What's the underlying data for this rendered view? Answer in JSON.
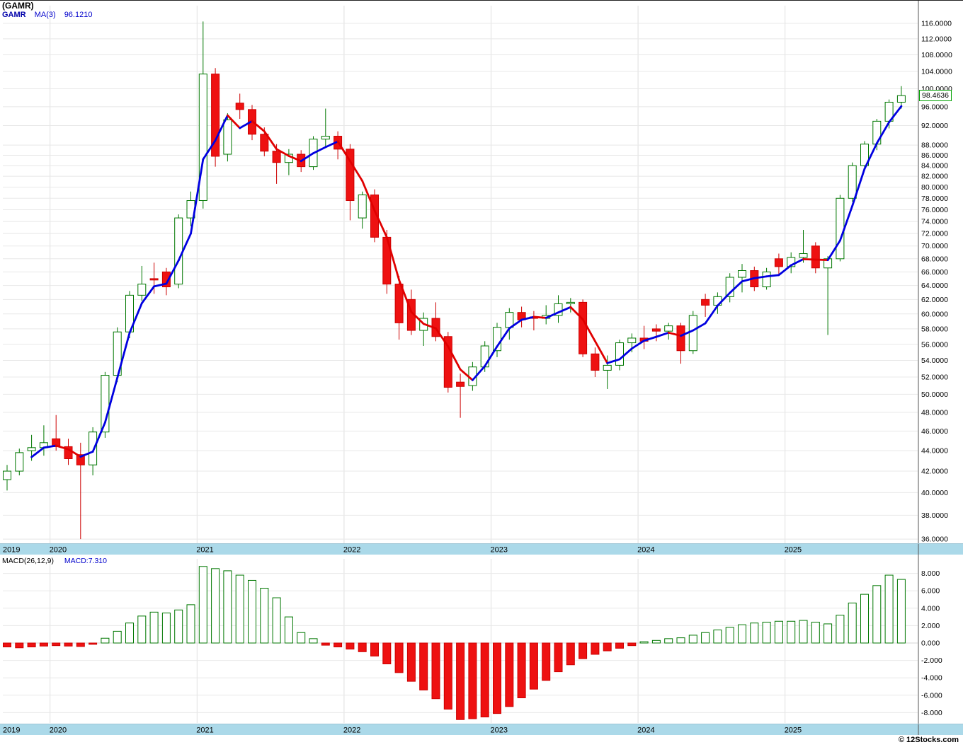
{
  "header": {
    "symbol_title": "(GAMR)",
    "legend_symbol": "GAMR",
    "legend_ma": "MA(3)",
    "legend_ma_value": "96.1210"
  },
  "macd_header": {
    "label": "MACD(26,12,9)",
    "value_label": "MACD:7.310"
  },
  "price_badge_label": "98.4636",
  "footer": {
    "copyright": "© 12Stocks.com"
  },
  "colors": {
    "up": "#007700",
    "up_fill": "#FFFFFF",
    "down": "#CC0000",
    "down_fill": "#EE1111",
    "ma_up": "#0000E0",
    "ma_down": "#E00000",
    "grid": "#E8E8E8",
    "grid_vert": "#E0E0E0",
    "band_bg": "#ABD9E9",
    "axis_text": "#000000",
    "frame": "#555555"
  },
  "chart_data": [
    {
      "type": "candlestick",
      "symbol": "GAMR",
      "interval": "monthly",
      "last_price": 98.4636,
      "ma": {
        "period": 3,
        "last_value": 96.121
      },
      "y_axis": {
        "scale": "log",
        "range": [
          35.66,
          120.75
        ],
        "tick_labels": [
          "116.0000",
          "112.0000",
          "108.0000",
          "104.0000",
          "100.0000",
          "96.0000",
          "92.0000",
          "88.0000",
          "86.0000",
          "84.0000",
          "82.0000",
          "80.0000",
          "78.0000",
          "76.0000",
          "74.0000",
          "72.0000",
          "70.0000",
          "68.0000",
          "66.0000",
          "64.0000",
          "62.0000",
          "60.0000",
          "58.0000",
          "56.0000",
          "54.0000",
          "52.0000",
          "50.0000",
          "48.0000",
          "46.0000",
          "44.0000",
          "42.0000",
          "40.0000",
          "38.0000",
          "36.0000"
        ]
      },
      "x_axis": {
        "year_labels": [
          {
            "label": "2019",
            "candle_index": 0,
            "at_left_edge": true
          },
          {
            "label": "2020",
            "candle_index": 4
          },
          {
            "label": "2021",
            "candle_index": 16
          },
          {
            "label": "2022",
            "candle_index": 28
          },
          {
            "label": "2023",
            "candle_index": 40
          },
          {
            "label": "2024",
            "candle_index": 52
          },
          {
            "label": "2025",
            "candle_index": 64
          }
        ]
      },
      "columns": [
        "month",
        "open",
        "high",
        "low",
        "close"
      ],
      "candles": [
        [
          "2019-09",
          41.2,
          42.6,
          40.2,
          42.0
        ],
        [
          "2019-10",
          42.0,
          44.2,
          41.6,
          43.8
        ],
        [
          "2019-11",
          44.0,
          45.6,
          43.0,
          44.3
        ],
        [
          "2019-12",
          44.3,
          46.6,
          43.5,
          44.8
        ],
        [
          "2020-01",
          45.2,
          47.7,
          44.0,
          44.4
        ],
        [
          "2020-02",
          44.4,
          45.2,
          42.6,
          43.2
        ],
        [
          "2020-03",
          43.6,
          44.8,
          36.0,
          42.6
        ],
        [
          "2020-04",
          42.6,
          46.4,
          41.6,
          45.9
        ],
        [
          "2020-05",
          45.9,
          52.6,
          45.3,
          52.2
        ],
        [
          "2020-06",
          52.2,
          58.2,
          51.4,
          57.6
        ],
        [
          "2020-07",
          57.6,
          63.2,
          56.8,
          62.6
        ],
        [
          "2020-08",
          62.6,
          66.9,
          61.8,
          64.2
        ],
        [
          "2020-09",
          65.0,
          67.4,
          62.8,
          64.8
        ],
        [
          "2020-10",
          66.0,
          66.6,
          62.6,
          63.8
        ],
        [
          "2020-11",
          64.2,
          75.2,
          63.6,
          74.6
        ],
        [
          "2020-12",
          74.6,
          79.2,
          73.2,
          77.6
        ],
        [
          "2021-01",
          77.6,
          116.5,
          76.2,
          103.4
        ],
        [
          "2021-02",
          103.4,
          104.8,
          83.8,
          85.8
        ],
        [
          "2021-03",
          86.2,
          94.6,
          84.8,
          93.2
        ],
        [
          "2021-04",
          96.8,
          98.9,
          93.4,
          95.4
        ],
        [
          "2021-05",
          95.4,
          96.4,
          89.0,
          90.2
        ],
        [
          "2021-06",
          90.2,
          91.6,
          85.8,
          86.8
        ],
        [
          "2021-07",
          86.8,
          88.2,
          80.6,
          84.6
        ],
        [
          "2021-08",
          84.6,
          87.2,
          82.2,
          86.2
        ],
        [
          "2021-09",
          86.2,
          87.0,
          82.8,
          83.8
        ],
        [
          "2021-10",
          83.8,
          89.8,
          83.2,
          89.2
        ],
        [
          "2021-11",
          89.2,
          95.6,
          87.6,
          89.8
        ],
        [
          "2021-12",
          89.8,
          90.8,
          85.2,
          87.2
        ],
        [
          "2022-01",
          87.2,
          88.2,
          74.2,
          77.6
        ],
        [
          "2022-02",
          74.6,
          79.2,
          72.8,
          78.6
        ],
        [
          "2022-03",
          78.6,
          79.6,
          70.6,
          71.4
        ],
        [
          "2022-04",
          71.4,
          72.6,
          62.8,
          64.2
        ],
        [
          "2022-05",
          64.2,
          65.4,
          56.6,
          58.8
        ],
        [
          "2022-06",
          62.0,
          63.4,
          57.2,
          57.8
        ],
        [
          "2022-07",
          57.8,
          60.2,
          55.8,
          59.4
        ],
        [
          "2022-08",
          59.4,
          61.6,
          56.4,
          57.0
        ],
        [
          "2022-09",
          57.0,
          57.6,
          50.2,
          50.8
        ],
        [
          "2022-10",
          51.4,
          52.4,
          47.4,
          50.9
        ],
        [
          "2022-11",
          51.0,
          53.8,
          50.4,
          53.2
        ],
        [
          "2022-12",
          53.2,
          56.4,
          52.6,
          55.8
        ],
        [
          "2023-01",
          55.2,
          58.8,
          54.4,
          58.2
        ],
        [
          "2023-02",
          58.2,
          60.8,
          56.6,
          60.2
        ],
        [
          "2023-03",
          60.2,
          61.0,
          58.2,
          59.2
        ],
        [
          "2023-04",
          59.6,
          60.4,
          57.8,
          59.4
        ],
        [
          "2023-05",
          59.4,
          61.2,
          58.6,
          59.8
        ],
        [
          "2023-06",
          59.8,
          62.6,
          58.8,
          61.4
        ],
        [
          "2023-07",
          61.4,
          62.2,
          60.2,
          61.6
        ],
        [
          "2023-08",
          61.6,
          62.0,
          54.4,
          54.8
        ],
        [
          "2023-09",
          54.8,
          55.6,
          52.0,
          52.8
        ],
        [
          "2023-10",
          52.8,
          54.6,
          50.6,
          53.4
        ],
        [
          "2023-11",
          53.4,
          56.6,
          52.8,
          56.2
        ],
        [
          "2023-12",
          56.2,
          57.4,
          55.0,
          56.8
        ],
        [
          "2024-01",
          56.8,
          58.4,
          55.4,
          56.4
        ],
        [
          "2024-02",
          58.0,
          58.6,
          56.4,
          57.7
        ],
        [
          "2024-03",
          57.7,
          58.8,
          56.6,
          58.4
        ],
        [
          "2024-04",
          58.4,
          58.8,
          53.6,
          55.2
        ],
        [
          "2024-05",
          55.2,
          60.4,
          54.8,
          59.8
        ],
        [
          "2024-06",
          62.0,
          62.8,
          59.6,
          61.2
        ],
        [
          "2024-07",
          61.2,
          63.0,
          60.0,
          62.4
        ],
        [
          "2024-08",
          62.4,
          65.8,
          61.6,
          65.2
        ],
        [
          "2024-09",
          65.2,
          67.2,
          63.0,
          66.2
        ],
        [
          "2024-10",
          66.2,
          66.8,
          63.2,
          63.8
        ],
        [
          "2024-11",
          63.8,
          66.6,
          63.4,
          66.0
        ],
        [
          "2024-12",
          68.0,
          68.8,
          65.4,
          66.8
        ],
        [
          "2025-01",
          66.8,
          69.0,
          65.8,
          68.2
        ],
        [
          "2025-02",
          68.2,
          72.6,
          67.4,
          68.8
        ],
        [
          "2025-03",
          70.0,
          70.6,
          65.8,
          66.6
        ],
        [
          "2025-04",
          66.6,
          68.4,
          57.2,
          68.0
        ],
        [
          "2025-05",
          68.0,
          78.6,
          67.6,
          78.0
        ],
        [
          "2025-06",
          78.0,
          84.6,
          77.4,
          84.0
        ],
        [
          "2025-07",
          84.0,
          88.8,
          83.2,
          88.2
        ],
        [
          "2025-08",
          88.2,
          93.4,
          87.0,
          92.9
        ],
        [
          "2025-09",
          92.9,
          97.6,
          91.4,
          97.0
        ],
        [
          "2025-10",
          97.0,
          100.6,
          95.6,
          98.4636
        ]
      ]
    },
    {
      "type": "bar",
      "name": "MACD(26,12,9) histogram",
      "last_value": 7.31,
      "y_axis": {
        "range": [
          -9.2,
          9.6
        ],
        "tick_labels": [
          "8.000",
          "6.000",
          "4.000",
          "2.000",
          "0.000",
          "-2.000",
          "-4.000",
          "-6.000",
          "-8.000"
        ]
      },
      "values": [
        -0.45,
        -0.55,
        -0.45,
        -0.35,
        -0.3,
        -0.35,
        -0.4,
        -0.15,
        0.55,
        1.35,
        2.3,
        3.1,
        3.55,
        3.45,
        3.8,
        4.4,
        8.8,
        8.55,
        8.3,
        7.8,
        7.2,
        6.3,
        5.2,
        3.0,
        1.2,
        0.5,
        -0.25,
        -0.45,
        -0.7,
        -1.0,
        -1.5,
        -2.4,
        -3.4,
        -4.4,
        -5.4,
        -6.4,
        -7.6,
        -8.8,
        -8.7,
        -8.5,
        -8.1,
        -7.3,
        -6.3,
        -5.3,
        -4.3,
        -3.3,
        -2.5,
        -1.8,
        -1.3,
        -0.9,
        -0.6,
        -0.3,
        0.15,
        0.3,
        0.5,
        0.6,
        0.9,
        1.2,
        1.5,
        1.8,
        2.1,
        2.3,
        2.4,
        2.5,
        2.5,
        2.6,
        2.4,
        2.2,
        3.2,
        4.6,
        5.6,
        6.6,
        7.8,
        7.31
      ]
    }
  ]
}
